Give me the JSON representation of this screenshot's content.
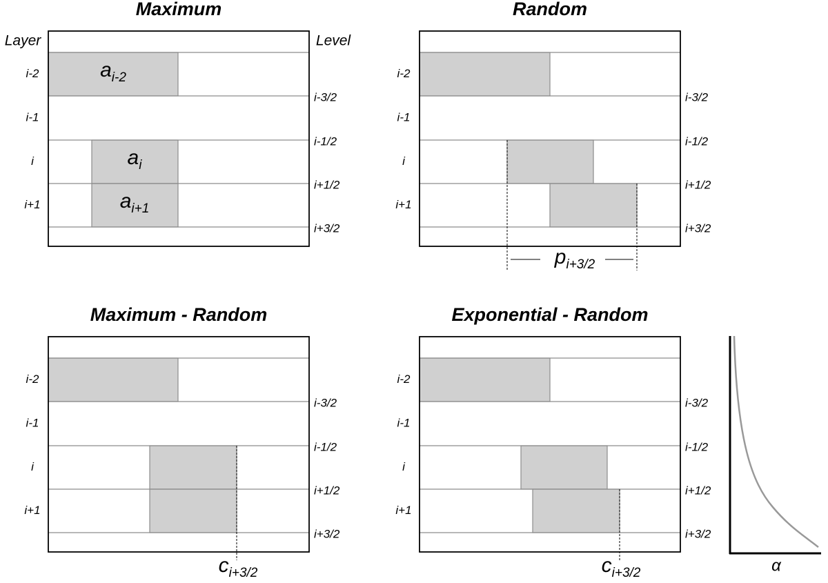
{
  "panels": [
    {
      "title": "Maximum",
      "layer_header": "Layer",
      "level_header": "Level",
      "layers": [
        "i-2",
        "i-1",
        "i",
        "i+1"
      ],
      "levels": [
        "i-3/2",
        "i-1/2",
        "i+1/2",
        "i+3/2"
      ],
      "box_labels": [
        {
          "base": "a",
          "sub": "i-2"
        },
        {
          "base": "a",
          "sub": "i"
        },
        {
          "base": "a",
          "sub": "i+1"
        }
      ]
    },
    {
      "title": "Random",
      "layers": [
        "i-2",
        "i-1",
        "i",
        "i+1"
      ],
      "levels": [
        "i-3/2",
        "i-1/2",
        "i+1/2",
        "i+3/2"
      ],
      "annotation": {
        "base": "p",
        "sub": "i+3/2"
      }
    },
    {
      "title": "Maximum - Random",
      "layers": [
        "i-2",
        "i-1",
        "i",
        "i+1"
      ],
      "levels": [
        "i-3/2",
        "i-1/2",
        "i+1/2",
        "i+3/2"
      ],
      "annotation": {
        "base": "c",
        "sub": "i+3/2"
      }
    },
    {
      "title": "Exponential - Random",
      "layers": [
        "i-2",
        "i-1",
        "i",
        "i+1"
      ],
      "levels": [
        "i-3/2",
        "i-1/2",
        "i+1/2",
        "i+3/2"
      ],
      "annotation": {
        "base": "c",
        "sub": "i+3/2"
      }
    }
  ],
  "curve": {
    "x_label": "α"
  }
}
